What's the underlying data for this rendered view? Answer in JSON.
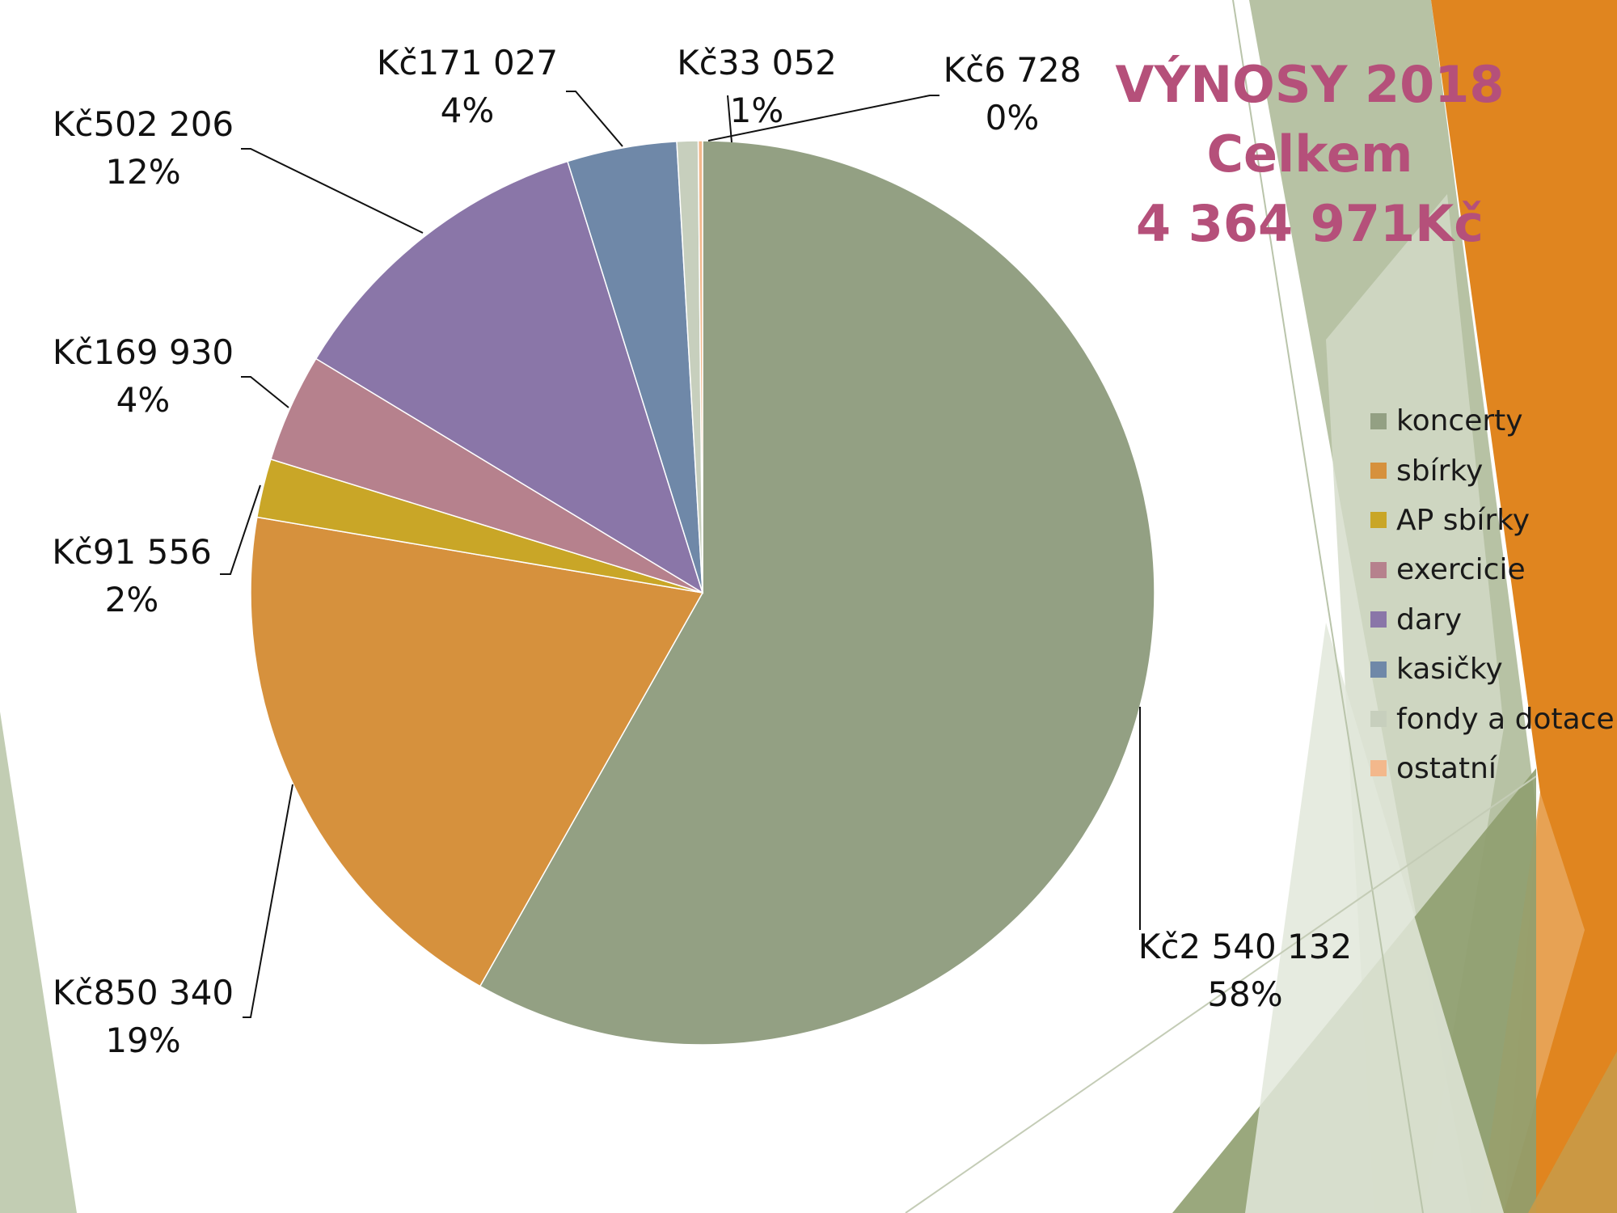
{
  "title": {
    "line1": "VÝNOSY 2018",
    "line2": "Celkem",
    "line3": "4 364 971Kč"
  },
  "colors": {
    "title": "#b5507a",
    "deco_green": "#a9b894",
    "deco_light_green": "#c9d3bb",
    "deco_orange": "#e0851f",
    "deco_olive": "#8f9e6f"
  },
  "chart_data": {
    "type": "pie",
    "title": "VÝNOSY 2018 Celkem 4 364 971Kč",
    "legend_position": "right",
    "slices": [
      {
        "name": "koncerty",
        "value": 2540132,
        "value_label": "Kč2 540 132",
        "percent_label": "58%",
        "color": "#93a083"
      },
      {
        "name": "sbírky",
        "value": 850340,
        "value_label": "Kč850 340",
        "percent_label": "19%",
        "color": "#d6913d"
      },
      {
        "name": "AP sbírky",
        "value": 91556,
        "value_label": "Kč91 556",
        "percent_label": "2%",
        "color": "#c9a627"
      },
      {
        "name": "exercicie",
        "value": 169930,
        "value_label": "Kč169 930",
        "percent_label": "4%",
        "color": "#b6818d"
      },
      {
        "name": "dary",
        "value": 502206,
        "value_label": "Kč502 206",
        "percent_label": "12%",
        "color": "#8a76a8"
      },
      {
        "name": "kasičky",
        "value": 171027,
        "value_label": "Kč171 027",
        "percent_label": "4%",
        "color": "#6f88a8"
      },
      {
        "name": "fondy a dotace",
        "value": 33052,
        "value_label": "Kč33 052",
        "percent_label": "1%",
        "color": "#c7cfbd"
      },
      {
        "name": "ostatní",
        "value": 6728,
        "value_label": "Kč6 728",
        "percent_label": "0%",
        "color": "#f3b88c"
      }
    ]
  }
}
